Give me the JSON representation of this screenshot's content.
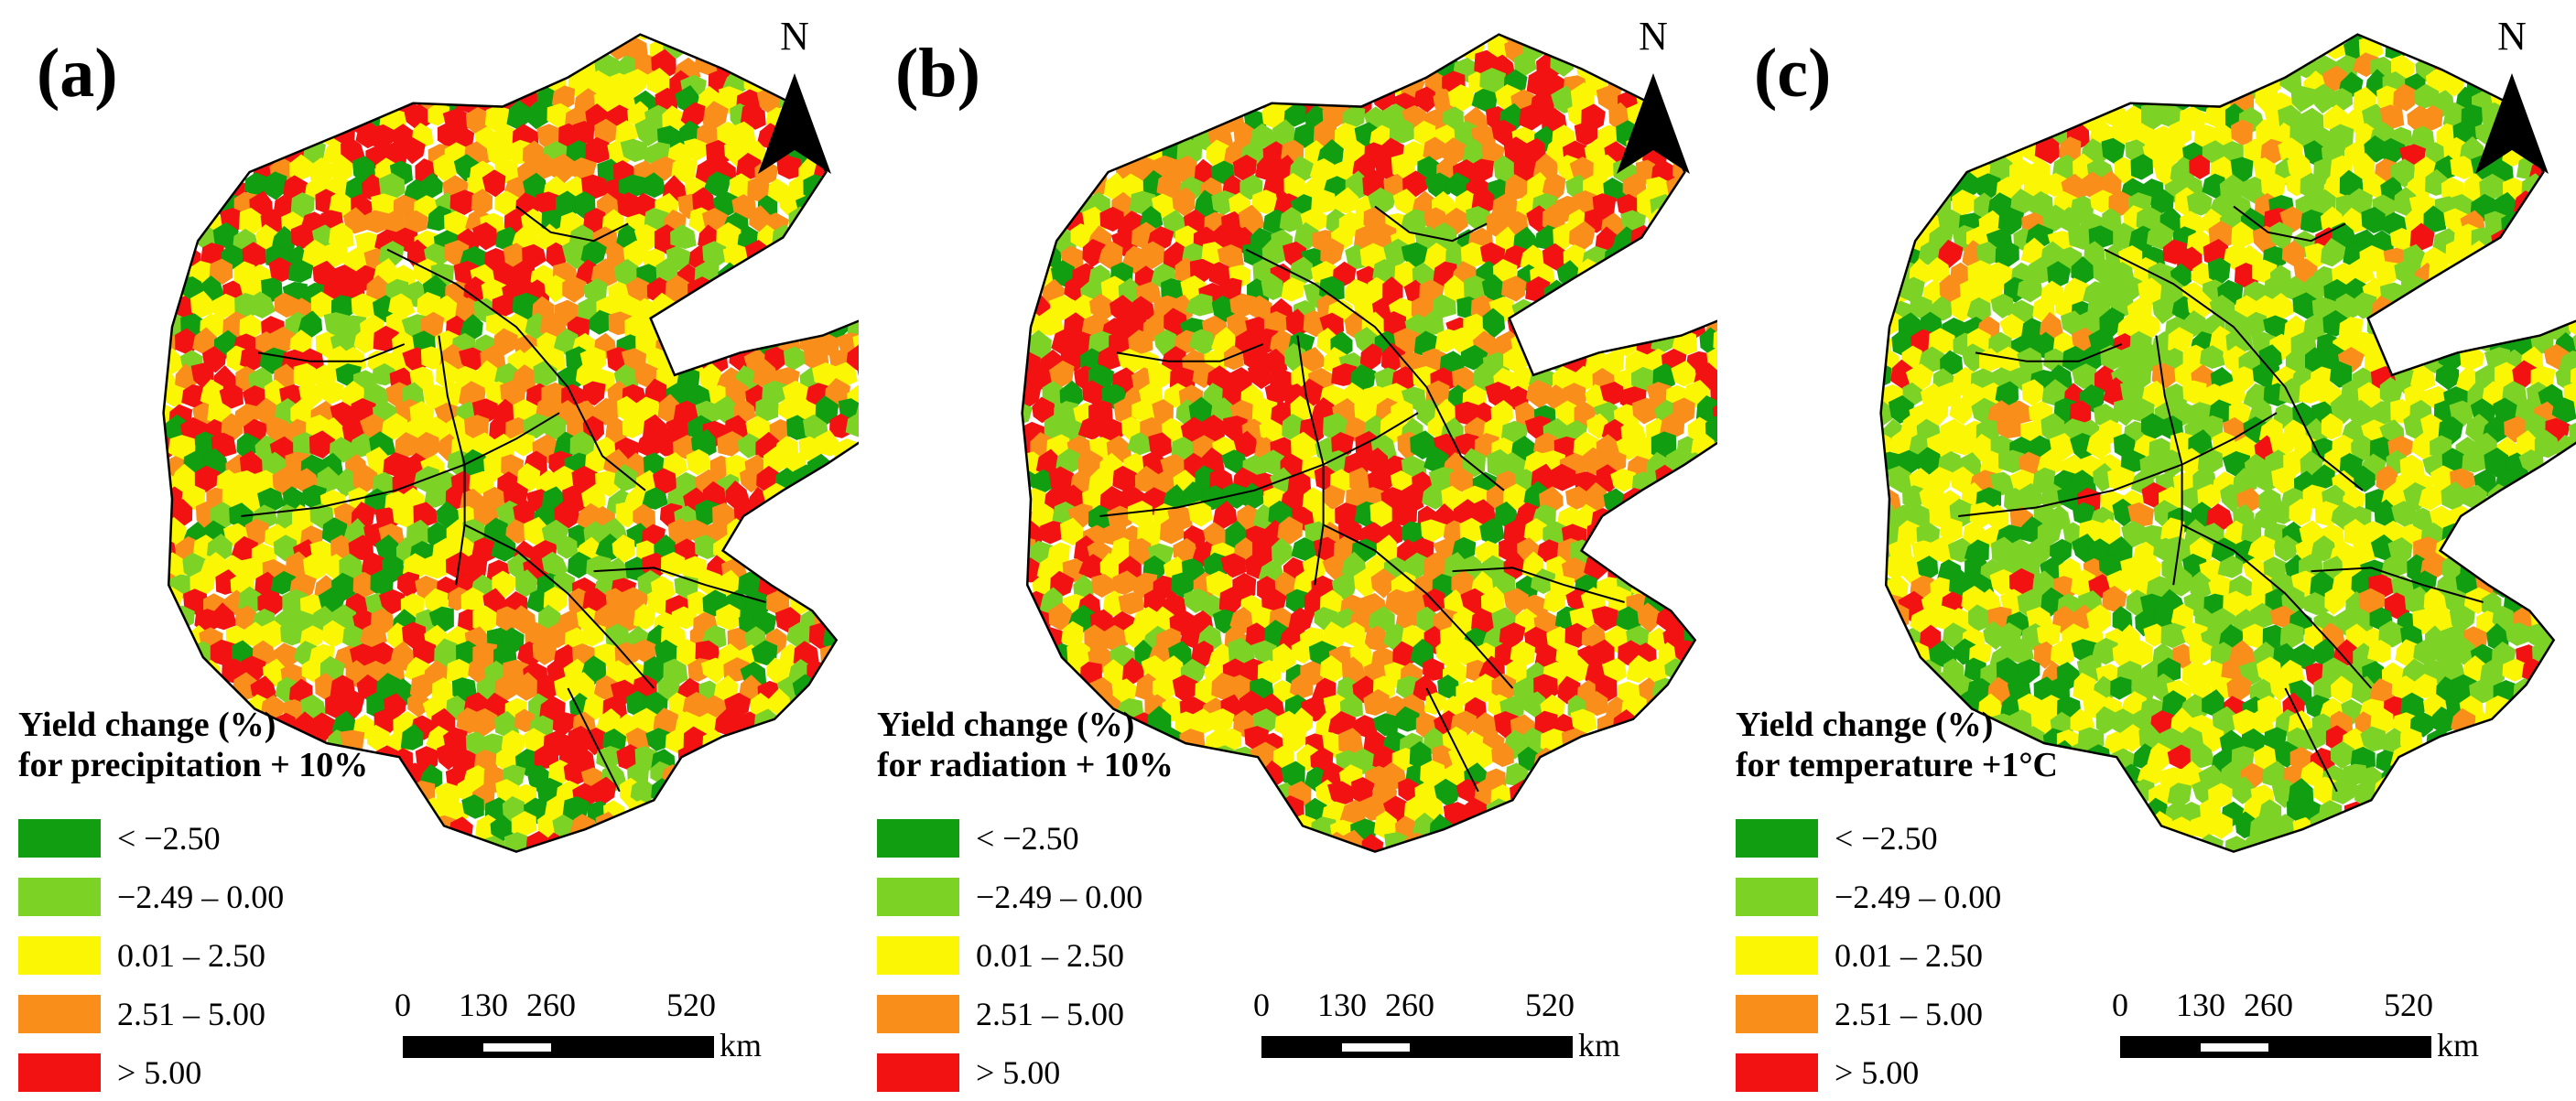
{
  "legend_classes": [
    {
      "label": "< −2.50",
      "color": "#119e11"
    },
    {
      "label": "−2.49 – 0.00",
      "color": "#7dd226"
    },
    {
      "label": "0.01 – 2.50",
      "color": "#fbf704"
    },
    {
      "label": "2.51 – 5.00",
      "color": "#f98e1a"
    },
    {
      "label": "> 5.00",
      "color": "#f21212"
    }
  ],
  "north_label": "N",
  "scale_bar": {
    "ticks": [
      "0",
      "130",
      "260",
      "520"
    ],
    "unit": "km"
  },
  "panels": [
    {
      "id": "a",
      "label": "(a)",
      "legend_title_line1": "Yield change (%)",
      "legend_title_line2": "for precipitation + 10%",
      "class_weights": [
        0.12,
        0.15,
        0.3,
        0.2,
        0.23
      ]
    },
    {
      "id": "b",
      "label": "(b)",
      "legend_title_line1": "Yield change (%)",
      "legend_title_line2": "for radiation + 10%",
      "class_weights": [
        0.13,
        0.15,
        0.25,
        0.22,
        0.25
      ]
    },
    {
      "id": "c",
      "label": "(c)",
      "legend_title_line1": "Yield change (%)",
      "legend_title_line2": "for temperature +1°C",
      "class_weights": [
        0.22,
        0.35,
        0.33,
        0.07,
        0.03
      ]
    }
  ]
}
